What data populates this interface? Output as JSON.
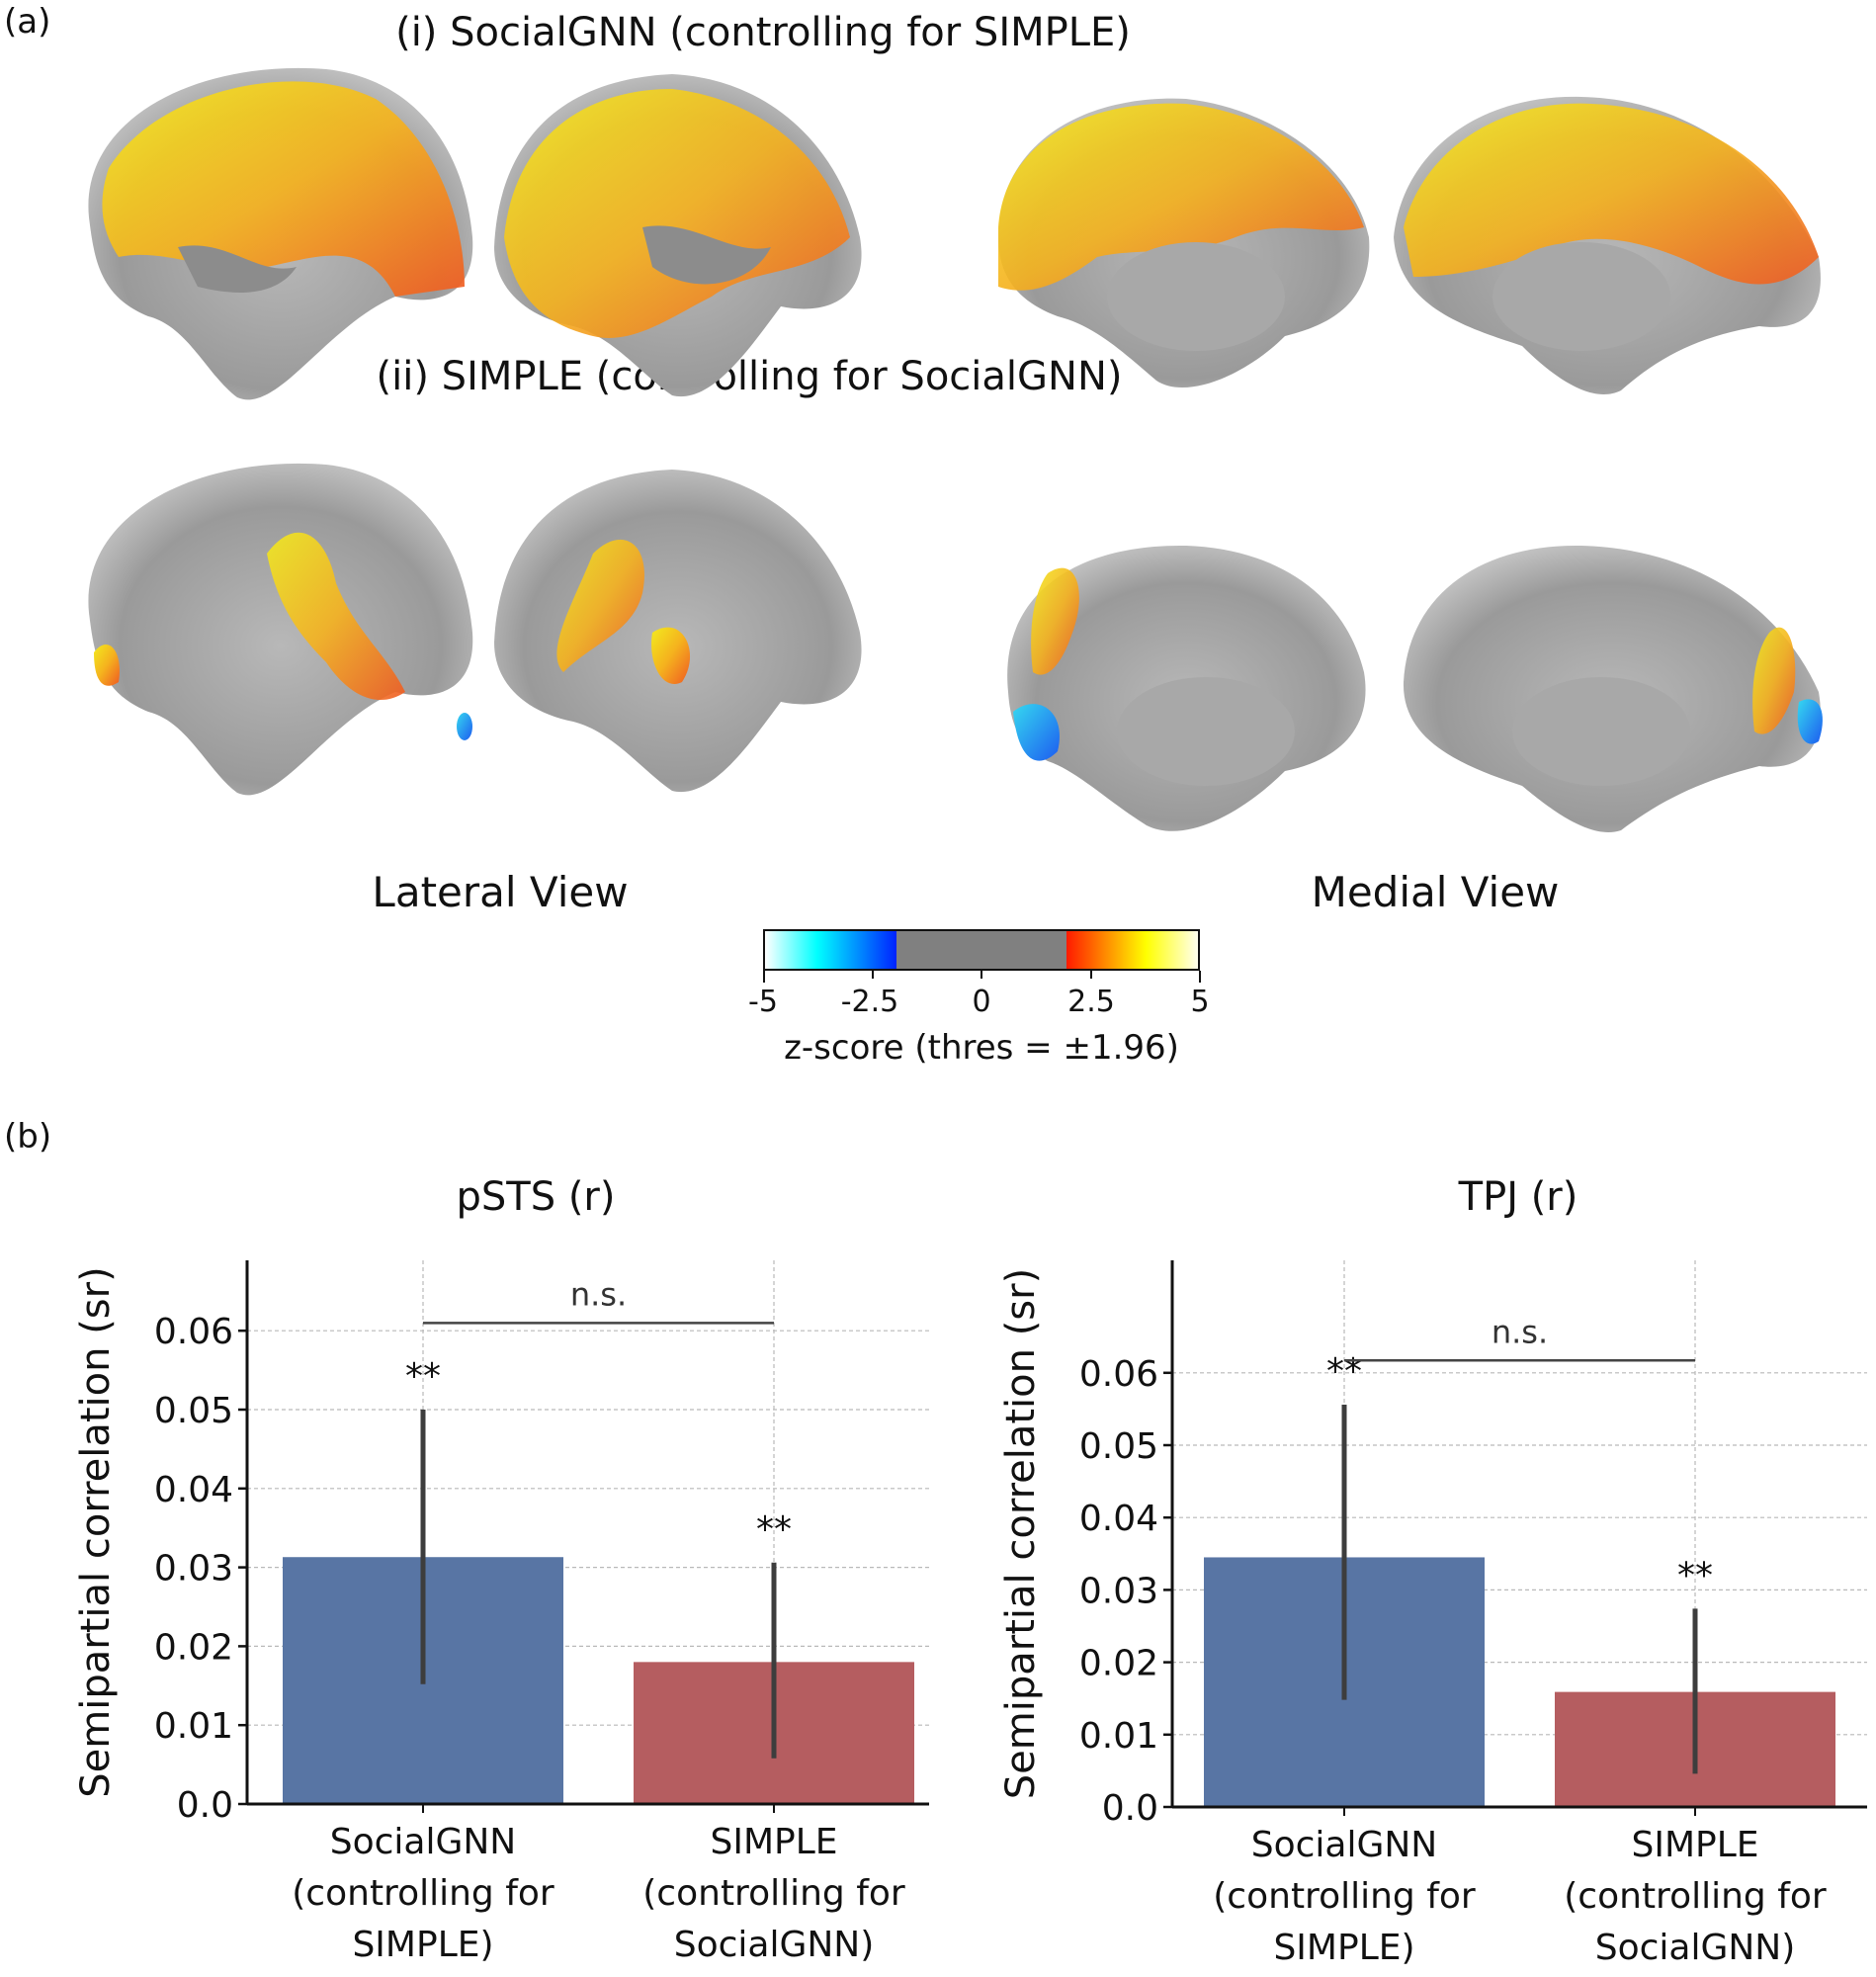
{
  "panel_a": {
    "label": "(a)",
    "row_i_title": "(i) SocialGNN (controlling for SIMPLE)",
    "row_ii_title": "(ii) SIMPLE (controlling for SocialGNN)",
    "lateral_label": "Lateral View",
    "medial_label": "Medial View",
    "colorbar": {
      "ticks": [
        "-5",
        "-2.5",
        "0",
        "2.5",
        "5"
      ],
      "title": "z-score (thres = ±1.96)",
      "range": [
        -5,
        5
      ],
      "threshold": 1.96,
      "colors": {
        "neg_low": "#ffffff",
        "neg_mid": "#00ffff",
        "neg_high": "#0022ff",
        "sub": "#808080",
        "pos_low": "#ff1a00",
        "pos_mid": "#ffff00",
        "pos_high": "#ffffee"
      }
    }
  },
  "panel_b": {
    "label": "(b)"
  },
  "chart_data": [
    {
      "type": "bar",
      "title": "pSTS (r)",
      "ylabel": "Semipartial correlation (sr)",
      "xlabel": "",
      "categories": [
        [
          "SocialGNN",
          "(controlling for",
          "SIMPLE)"
        ],
        [
          "SIMPLE",
          "(controlling for",
          "SocialGNN)"
        ]
      ],
      "values": [
        0.0313,
        0.018
      ],
      "error_low": [
        0.0152,
        0.0058
      ],
      "error_high": [
        0.05,
        0.0306
      ],
      "significance": [
        "**",
        "**"
      ],
      "comparison": "n.s.",
      "colors": [
        "#5875a4",
        "#b55d60"
      ],
      "ylim": [
        0,
        0.066
      ],
      "yticks": [
        "0.0",
        "0.01",
        "0.02",
        "0.03",
        "0.04",
        "0.05",
        "0.06"
      ],
      "grid": true
    },
    {
      "type": "bar",
      "title": "TPJ (r)",
      "ylabel": "Semipartial correlation (sr)",
      "xlabel": "",
      "categories": [
        [
          "SocialGNN",
          "(controlling for",
          "SIMPLE)"
        ],
        [
          "SIMPLE",
          "(controlling for",
          "SocialGNN)"
        ]
      ],
      "values": [
        0.0345,
        0.0159
      ],
      "error_low": [
        0.0148,
        0.0046
      ],
      "error_high": [
        0.0556,
        0.0274
      ],
      "significance": [
        "**",
        "**"
      ],
      "comparison": "n.s.",
      "colors": [
        "#5875a4",
        "#b55d60"
      ],
      "ylim": [
        0,
        0.071
      ],
      "yticks": [
        "0.0",
        "0.01",
        "0.02",
        "0.03",
        "0.04",
        "0.05",
        "0.06"
      ],
      "grid": true
    }
  ]
}
